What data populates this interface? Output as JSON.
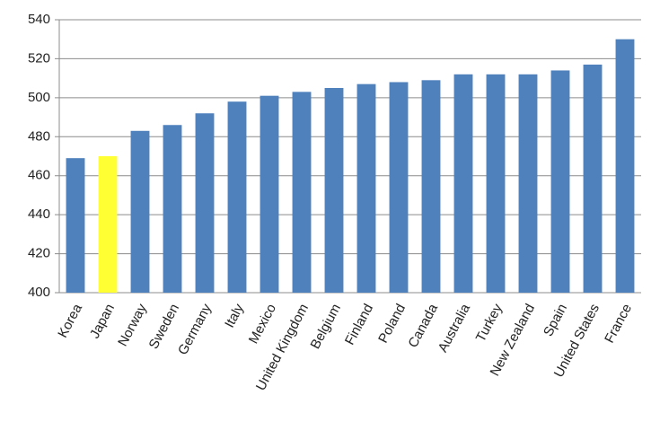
{
  "chart_data": {
    "type": "bar",
    "categories": [
      "Korea",
      "Japan",
      "Norway",
      "Sweden",
      "Germany",
      "Italy",
      "Mexico",
      "United Kingdom",
      "Belgium",
      "Finland",
      "Poland",
      "Canada",
      "Australia",
      "Turkey",
      "New Zealand",
      "Spain",
      "United States",
      "France"
    ],
    "values": [
      469,
      470,
      483,
      486,
      492,
      498,
      501,
      503,
      505,
      507,
      508,
      509,
      512,
      512,
      512,
      514,
      517,
      530
    ],
    "colors": [
      "#4f81bd",
      "#ffff33",
      "#4f81bd",
      "#4f81bd",
      "#4f81bd",
      "#4f81bd",
      "#4f81bd",
      "#4f81bd",
      "#4f81bd",
      "#4f81bd",
      "#4f81bd",
      "#4f81bd",
      "#4f81bd",
      "#4f81bd",
      "#4f81bd",
      "#4f81bd",
      "#4f81bd",
      "#4f81bd"
    ],
    "ylim": [
      400,
      540
    ],
    "yticks": [
      400,
      420,
      440,
      460,
      480,
      500,
      520,
      540
    ],
    "grid": true
  }
}
